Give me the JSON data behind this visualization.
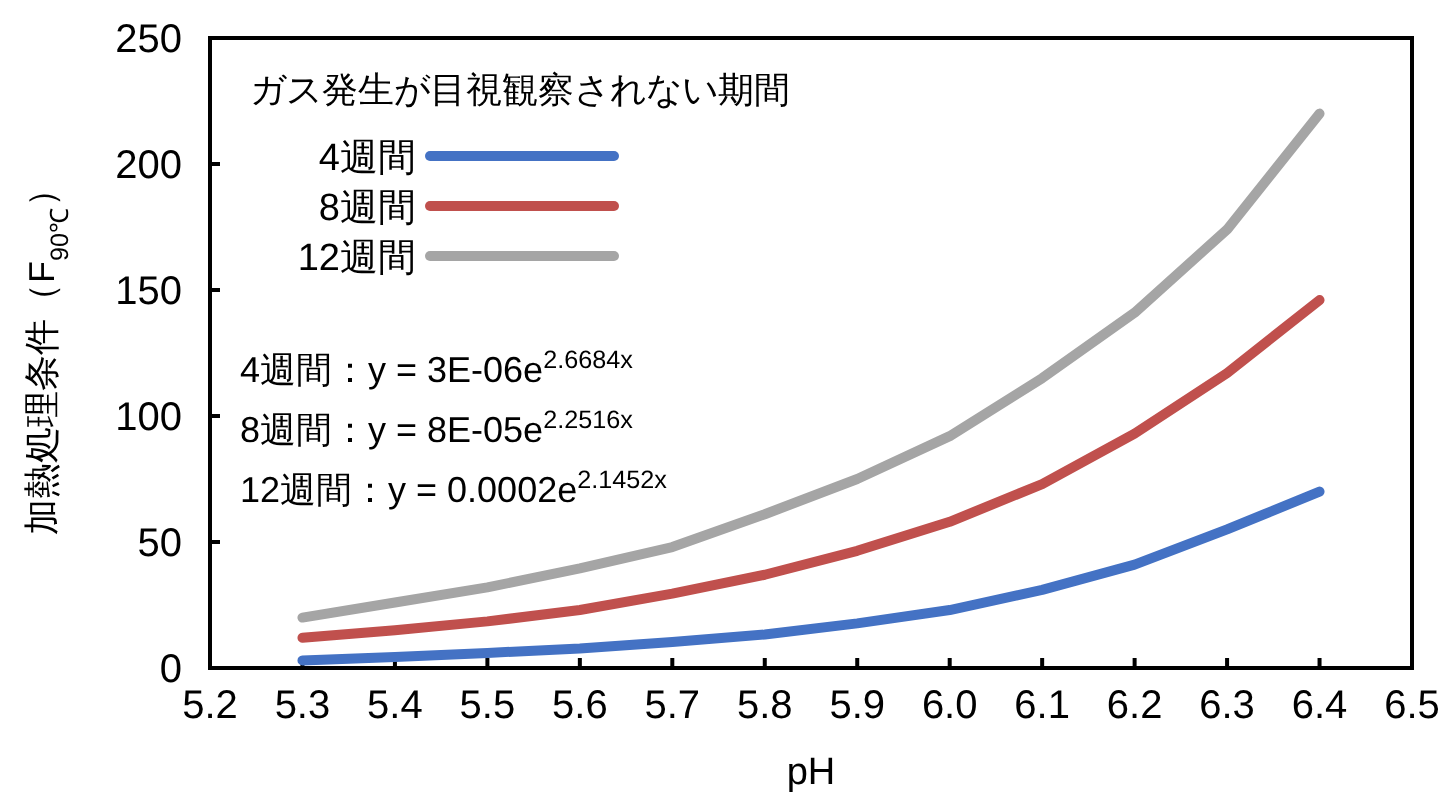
{
  "chart_data": {
    "type": "line",
    "xlabel": "pH",
    "ylabel": "加熱処理条件（F$_{90℃}$）",
    "legend_title": "ガス発生が目視観察されない期間",
    "legend": "top left",
    "grid": false,
    "marker": "none",
    "line_style": "solid",
    "x": [
      5.3,
      5.4,
      5.5,
      5.6,
      5.7,
      5.8,
      5.9,
      6.0,
      6.1,
      6.2,
      6.3,
      6.4
    ],
    "xlim": [
      5.2,
      6.5
    ],
    "xticks": [
      5.2,
      5.3,
      5.4,
      5.5,
      5.6,
      5.7,
      5.8,
      5.9,
      {
        "value": 6.0,
        "label": "6.0"
      },
      6.1,
      6.2,
      6.3,
      6.4,
      6.5
    ],
    "ylim": [
      0,
      250
    ],
    "yticks": [
      0,
      50,
      100,
      150,
      200,
      250
    ],
    "series": [
      {
        "name": "4週間",
        "color": "#4472c4",
        "values": [
          3,
          4.4,
          6,
          7.7,
          10.3,
          13.3,
          17.7,
          23,
          31,
          41,
          55,
          70
        ]
      },
      {
        "name": "8週間",
        "color": "#c0504d",
        "values": [
          12,
          15,
          18.5,
          23,
          29.5,
          37,
          46.5,
          58,
          73,
          93,
          117,
          146
        ]
      },
      {
        "name": "12週間",
        "color": "#a5a5a5",
        "values": [
          20,
          26,
          32,
          39.5,
          48,
          61,
          75,
          92,
          115,
          141,
          174,
          220
        ]
      }
    ],
    "annotations": [
      "4週間：y = 3E-06e$^{2.6684x}$",
      "8週間：y = 8E-05e$^{2.2516x}$",
      "12週間：y = 0.0002e$^{2.1452x}$"
    ]
  }
}
